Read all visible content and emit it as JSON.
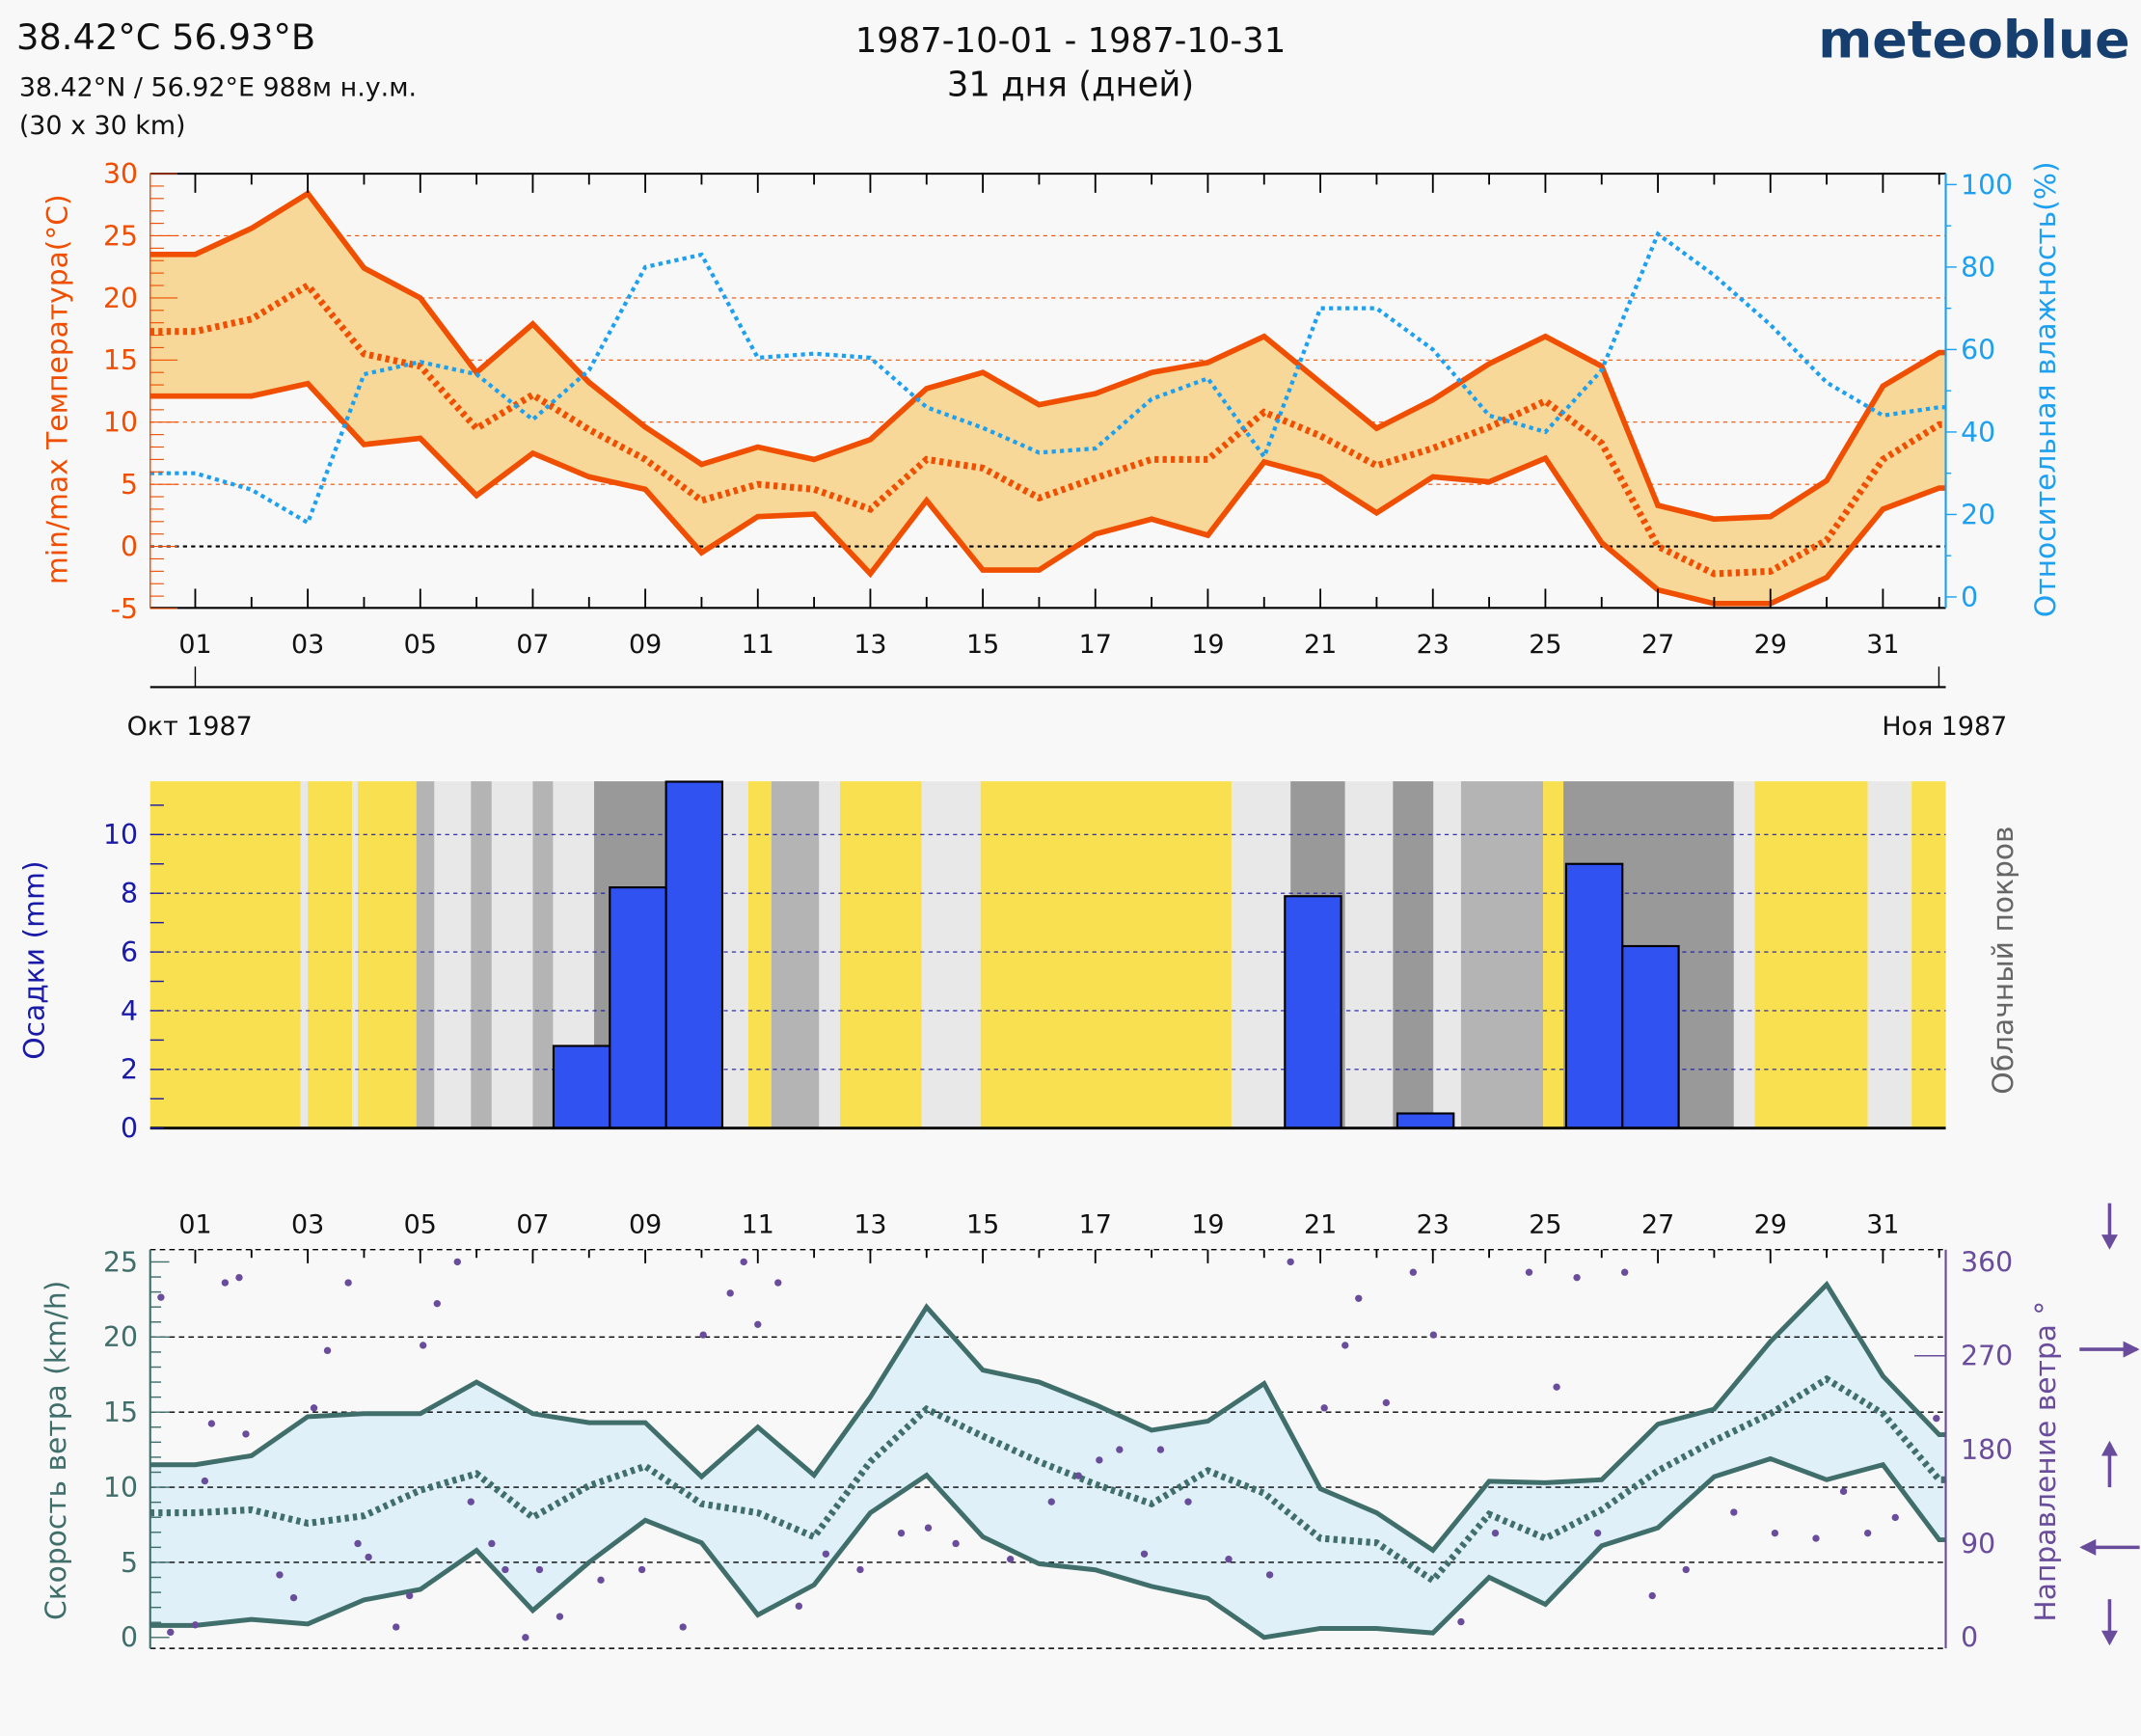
{
  "header": {
    "title": "38.42°С 56.93°В",
    "coords": "38.42°N / 56.92°E   988м н.у.м.",
    "resolution": "(30 x 30 km)",
    "date_range": "1987-10-01 - 1987-10-31",
    "days": "31 дня (дней)",
    "logo": "meteoblue"
  },
  "colors": {
    "temperature": "#f04e00",
    "temperature_fill": "#f8d898",
    "humidity": "#1ea0f0",
    "precip": "#2f52f0",
    "precip_axis": "#1a1aa8",
    "cloud_clear": "#f8e050",
    "cloud_partly": "#e8e8e8",
    "cloud_mixed": "#b4b4b4",
    "cloud_cloudy": "#999999",
    "wind": "#3f6e6b",
    "wind_fill": "#dff0f8",
    "wind_dir": "#6a4c9c"
  },
  "day_labels": [
    "01",
    "03",
    "05",
    "07",
    "09",
    "11",
    "13",
    "15",
    "17",
    "19",
    "21",
    "23",
    "25",
    "27",
    "29",
    "31"
  ],
  "month_labels": {
    "start": "Окт 1987",
    "end": "Ноя 1987"
  },
  "direction_icons": [
    "arrow-down-icon",
    "arrow-right-icon",
    "arrow-up-icon",
    "arrow-left-icon",
    "arrow-down-icon"
  ],
  "chart_data": [
    {
      "type": "line",
      "x_unit": "day of October 1987",
      "x": [
        1,
        2,
        3,
        4,
        5,
        6,
        7,
        8,
        9,
        10,
        11,
        12,
        13,
        14,
        15,
        16,
        17,
        18,
        19,
        20,
        21,
        22,
        23,
        24,
        25,
        26,
        27,
        28,
        29,
        30,
        31,
        32
      ],
      "ylabel": "min/max Температура(°C)",
      "ylabel_right": "Относительная влажность(%)",
      "ylim": [
        -5,
        30
      ],
      "ylim_right": [
        0,
        100
      ],
      "yticks": [
        30,
        25,
        20,
        15,
        10,
        5,
        0,
        -5
      ],
      "yticks_right": [
        100,
        80,
        60,
        40,
        20,
        0
      ],
      "series": [
        {
          "key": "max",
          "values": [
            23.5,
            25.6,
            28.4,
            22.4,
            20,
            14,
            17.9,
            13.2,
            9.6,
            6.6,
            8,
            7,
            8.6,
            12.7,
            14,
            11.4,
            12.3,
            14,
            14.8,
            16.9,
            13.2,
            9.5,
            11.8,
            14.7,
            16.9,
            14.5,
            3.3,
            2.2,
            2.4,
            5.3,
            12.9,
            15.6
          ]
        },
        {
          "key": "mean",
          "values": [
            17.3,
            18.3,
            21,
            15.5,
            14.5,
            9.5,
            12.2,
            9.4,
            7,
            3.7,
            5,
            4.6,
            3,
            7,
            6.3,
            3.9,
            5.5,
            7,
            7,
            10.8,
            8.9,
            6.5,
            7.9,
            9.6,
            11.7,
            8.3,
            0,
            -2.2,
            -2,
            0.5,
            7,
            9.8
          ]
        },
        {
          "key": "min",
          "values": [
            12.1,
            12.1,
            13.1,
            8.2,
            8.7,
            4.1,
            7.5,
            5.6,
            4.6,
            -0.5,
            2.4,
            2.6,
            -2.2,
            3.7,
            -1.9,
            -1.9,
            1,
            2.2,
            0.9,
            6.8,
            5.6,
            2.7,
            5.6,
            5.2,
            7.1,
            0.3,
            -3.5,
            -4.6,
            -4.6,
            -2.5,
            3,
            4.7
          ]
        },
        {
          "key": "humidity",
          "axis": "right",
          "values": [
            30,
            26,
            18,
            54,
            57,
            54,
            43,
            55,
            80,
            83,
            58,
            59,
            58,
            46,
            41,
            35,
            36,
            48,
            53,
            34,
            70,
            70,
            60,
            44,
            40,
            55,
            88,
            78,
            66,
            52,
            44,
            46
          ]
        }
      ]
    },
    {
      "type": "bar",
      "ylabel": "Осадки (mm)",
      "ylabel_right": "Облачный покров",
      "ylim": [
        0,
        11.8
      ],
      "yticks": [
        10,
        8,
        6,
        4,
        2,
        0
      ],
      "bars": [
        {
          "day": 8,
          "value": 2.8
        },
        {
          "day": 9,
          "value": 8.2
        },
        {
          "day": 10,
          "value": 11.8
        },
        {
          "day": 21,
          "value": 7.9
        },
        {
          "day": 23,
          "value": 0.5
        },
        {
          "day": 26,
          "value": 9.0
        },
        {
          "day": 27,
          "value": 6.2
        }
      ],
      "cloud_cover": [
        [
          0.2,
          2.87,
          "clear"
        ],
        [
          2.87,
          3.0,
          "partly"
        ],
        [
          3.0,
          3.79,
          "clear"
        ],
        [
          3.79,
          3.89,
          "partly"
        ],
        [
          3.89,
          4.93,
          "clear"
        ],
        [
          4.93,
          5.25,
          "mixed"
        ],
        [
          5.25,
          5.9,
          "partly"
        ],
        [
          5.9,
          6.27,
          "mixed"
        ],
        [
          6.27,
          7.0,
          "partly"
        ],
        [
          7.0,
          7.36,
          "mixed"
        ],
        [
          7.36,
          8.09,
          "partly"
        ],
        [
          8.09,
          10.39,
          "cloudy"
        ],
        [
          10.39,
          10.83,
          "partly"
        ],
        [
          10.83,
          11.24,
          "clear"
        ],
        [
          11.24,
          12.09,
          "mixed"
        ],
        [
          12.09,
          12.46,
          "partly"
        ],
        [
          12.46,
          13.91,
          "clear"
        ],
        [
          13.91,
          14.96,
          "partly"
        ],
        [
          14.96,
          19.42,
          "clear"
        ],
        [
          19.42,
          20.47,
          "partly"
        ],
        [
          20.47,
          21.44,
          "cloudy"
        ],
        [
          21.44,
          22.29,
          "partly"
        ],
        [
          22.29,
          23.01,
          "cloudy"
        ],
        [
          23.01,
          23.5,
          "partly"
        ],
        [
          23.5,
          24.96,
          "mixed"
        ],
        [
          24.96,
          25.32,
          "clear"
        ],
        [
          25.32,
          28.35,
          "cloudy"
        ],
        [
          28.35,
          28.72,
          "partly"
        ],
        [
          28.72,
          30.73,
          "clear"
        ],
        [
          30.73,
          31.51,
          "partly"
        ],
        [
          31.51,
          32.12,
          "clear"
        ]
      ]
    },
    {
      "type": "line",
      "x_unit": "day of October 1987",
      "x": [
        1,
        2,
        3,
        4,
        5,
        6,
        7,
        8,
        9,
        10,
        11,
        12,
        13,
        14,
        15,
        16,
        17,
        18,
        19,
        20,
        21,
        22,
        23,
        24,
        25,
        26,
        27,
        28,
        29,
        30,
        31,
        32
      ],
      "ylabel": "Скорость ветра (km/h)",
      "ylabel_right": "Направление ветра °",
      "ylim": [
        0,
        25
      ],
      "ylim_right": [
        0,
        360
      ],
      "yticks": [
        25,
        20,
        15,
        10,
        5,
        0
      ],
      "yticks_right": [
        360,
        270,
        180,
        90,
        0
      ],
      "series": [
        {
          "key": "max",
          "values": [
            11.5,
            12.1,
            14.7,
            14.9,
            14.9,
            17,
            14.9,
            14.3,
            14.3,
            10.7,
            14,
            10.8,
            16,
            22,
            17.8,
            17,
            15.5,
            13.8,
            14.4,
            16.9,
            9.9,
            8.3,
            5.8,
            10.4,
            10.3,
            10.5,
            14.2,
            15.2,
            19.7,
            23.5,
            17.4,
            13.5
          ]
        },
        {
          "key": "mean",
          "values": [
            8.3,
            8.5,
            7.6,
            8.1,
            9.8,
            10.9,
            8,
            10.1,
            11.4,
            8.9,
            8.3,
            6.7,
            11.7,
            15.2,
            13.4,
            11.7,
            10.2,
            8.9,
            11.1,
            9.6,
            6.6,
            6.3,
            3.8,
            8.2,
            6.6,
            8.5,
            11.1,
            13.1,
            14.9,
            17.2,
            14.9,
            10.5
          ]
        },
        {
          "key": "min",
          "values": [
            0.8,
            1.2,
            0.9,
            2.5,
            3.2,
            5.8,
            1.8,
            5,
            7.8,
            6.3,
            1.5,
            3.5,
            8.3,
            10.8,
            6.7,
            4.9,
            4.5,
            3.4,
            2.6,
            0,
            0.6,
            0.6,
            0.3,
            4,
            2.2,
            6.1,
            7.3,
            10.7,
            11.9,
            10.5,
            11.5,
            6.5
          ]
        }
      ],
      "direction": [
        [
          0.39,
          326
        ],
        [
          0.56,
          5
        ],
        [
          1.0,
          12
        ],
        [
          1.17,
          150
        ],
        [
          1.29,
          205
        ],
        [
          1.53,
          340
        ],
        [
          1.78,
          345
        ],
        [
          1.9,
          195
        ],
        [
          2.5,
          60
        ],
        [
          2.75,
          38
        ],
        [
          3.11,
          220
        ],
        [
          3.35,
          275
        ],
        [
          3.72,
          340
        ],
        [
          3.89,
          90
        ],
        [
          4.08,
          77
        ],
        [
          4.57,
          10
        ],
        [
          4.81,
          40
        ],
        [
          5.05,
          280
        ],
        [
          5.3,
          320
        ],
        [
          5.66,
          360
        ],
        [
          5.9,
          130
        ],
        [
          6.27,
          90
        ],
        [
          6.51,
          65
        ],
        [
          6.87,
          0
        ],
        [
          7.12,
          65
        ],
        [
          7.48,
          20
        ],
        [
          8.21,
          55
        ],
        [
          8.94,
          65
        ],
        [
          9.67,
          10
        ],
        [
          10.03,
          290
        ],
        [
          10.51,
          330
        ],
        [
          10.75,
          360
        ],
        [
          11.0,
          300
        ],
        [
          11.36,
          340
        ],
        [
          11.73,
          30
        ],
        [
          12.21,
          80
        ],
        [
          12.82,
          65
        ],
        [
          13.55,
          100
        ],
        [
          14.03,
          105
        ],
        [
          14.52,
          90
        ],
        [
          15.49,
          75
        ],
        [
          16.22,
          130
        ],
        [
          16.7,
          155
        ],
        [
          17.07,
          170
        ],
        [
          17.43,
          180
        ],
        [
          17.87,
          80
        ],
        [
          18.16,
          180
        ],
        [
          18.65,
          130
        ],
        [
          19.37,
          75
        ],
        [
          20.1,
          60
        ],
        [
          20.47,
          360
        ],
        [
          21.07,
          220
        ],
        [
          21.44,
          280
        ],
        [
          21.68,
          325
        ],
        [
          22.17,
          225
        ],
        [
          22.65,
          350
        ],
        [
          23.01,
          290
        ],
        [
          23.5,
          15
        ],
        [
          24.11,
          100
        ],
        [
          24.71,
          350
        ],
        [
          25.2,
          240
        ],
        [
          25.56,
          345
        ],
        [
          25.93,
          100
        ],
        [
          26.41,
          350
        ],
        [
          26.9,
          40
        ],
        [
          27.5,
          65
        ],
        [
          28.35,
          120
        ],
        [
          29.08,
          100
        ],
        [
          29.81,
          95
        ],
        [
          30.3,
          140
        ],
        [
          30.73,
          100
        ],
        [
          31.22,
          115
        ],
        [
          31.95,
          210
        ]
      ]
    }
  ]
}
